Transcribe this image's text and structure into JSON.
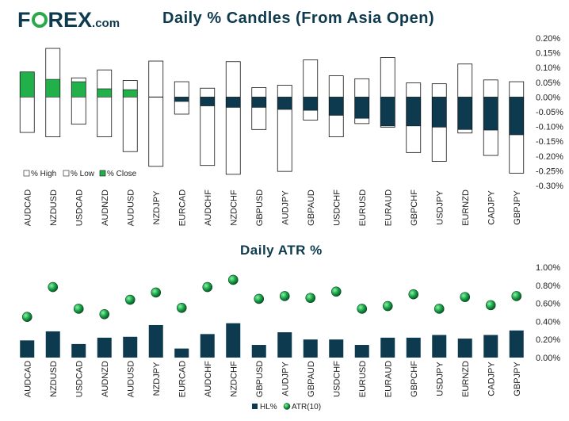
{
  "brand": {
    "name_part1": "F",
    "name_part2": "REX",
    "domain": ".com",
    "o_icon": "forex-o-ring-icon",
    "colors": {
      "navy": "#0e3a4e",
      "green": "#2aa84a"
    }
  },
  "chart_data": [
    {
      "type": "bar",
      "title": "Daily % Candles (From Asia Open)",
      "categories": [
        "AUDCAD",
        "NZDUSD",
        "USDCAD",
        "AUDNZD",
        "AUDUSD",
        "NZDJPY",
        "EURCAD",
        "AUDCHF",
        "NZDCHF",
        "GBPUSD",
        "AUDJPY",
        "GBPAUD",
        "USDCHF",
        "EURUSD",
        "EURAUD",
        "GBPCHF",
        "USDJPY",
        "EURNZD",
        "CADJPY",
        "GBPJPY"
      ],
      "series": [
        {
          "name": "% High",
          "values": [
            0.085,
            0.165,
            0.065,
            0.092,
            0.056,
            0.122,
            0.052,
            0.03,
            0.12,
            0.032,
            0.04,
            0.126,
            0.072,
            0.062,
            0.134,
            0.048,
            0.045,
            0.112,
            0.058,
            0.052
          ]
        },
        {
          "name": "% Low",
          "values": [
            -0.12,
            -0.135,
            -0.092,
            -0.135,
            -0.185,
            -0.235,
            -0.058,
            -0.232,
            -0.262,
            -0.11,
            -0.252,
            -0.078,
            -0.135,
            -0.09,
            -0.102,
            -0.188,
            -0.218,
            -0.122,
            -0.198,
            -0.258
          ]
        },
        {
          "name": "% Close",
          "values": [
            0.085,
            0.06,
            0.052,
            0.028,
            0.025,
            0.0,
            -0.015,
            -0.03,
            -0.035,
            -0.035,
            -0.042,
            -0.045,
            -0.062,
            -0.072,
            -0.098,
            -0.098,
            -0.102,
            -0.11,
            -0.112,
            -0.128
          ]
        }
      ],
      "ylim": [
        -0.3,
        0.2
      ],
      "yticks": [
        "0.20%",
        "0.15%",
        "0.10%",
        "0.05%",
        "0.00%",
        "-0.05%",
        "-0.10%",
        "-0.15%",
        "-0.20%",
        "-0.25%",
        "-0.30%"
      ],
      "ytick_values": [
        0.2,
        0.15,
        0.1,
        0.05,
        0.0,
        -0.05,
        -0.1,
        -0.15,
        -0.2,
        -0.25,
        -0.3
      ],
      "legend": [
        "% High",
        "% Low",
        "% Close"
      ],
      "legend_position": "bottom-left",
      "colors": {
        "positive_close": "#22b04b",
        "negative_close": "#0d3a4e",
        "range": "#ffffff",
        "outline": "#111111"
      }
    },
    {
      "type": "bar",
      "title": "Daily ATR %",
      "categories": [
        "AUDCAD",
        "NZDUSD",
        "USDCAD",
        "AUDNZD",
        "AUDUSD",
        "NZDJPY",
        "EURCAD",
        "AUDCHF",
        "NZDCHF",
        "GBPUSD",
        "AUDJPY",
        "GBPAUD",
        "USDCHF",
        "EURUSD",
        "EURAUD",
        "GBPCHF",
        "USDJPY",
        "EURNZD",
        "CADJPY",
        "GBPJPY"
      ],
      "series": [
        {
          "name": "HL%",
          "type": "bar",
          "values": [
            0.19,
            0.29,
            0.15,
            0.22,
            0.23,
            0.36,
            0.1,
            0.26,
            0.38,
            0.14,
            0.28,
            0.2,
            0.2,
            0.14,
            0.22,
            0.22,
            0.25,
            0.21,
            0.25,
            0.3
          ]
        },
        {
          "name": "ATR(10)",
          "type": "scatter",
          "values": [
            0.45,
            0.78,
            0.54,
            0.48,
            0.64,
            0.72,
            0.55,
            0.78,
            0.86,
            0.65,
            0.68,
            0.66,
            0.73,
            0.54,
            0.57,
            0.7,
            0.54,
            0.67,
            0.58,
            0.68
          ]
        }
      ],
      "ylim": [
        0.0,
        1.0
      ],
      "yticks": [
        "1.00%",
        "0.80%",
        "0.60%",
        "0.40%",
        "0.20%",
        "0.00%"
      ],
      "ytick_values": [
        1.0,
        0.8,
        0.6,
        0.4,
        0.2,
        0.0
      ],
      "legend": [
        "HL%",
        "ATR(10)"
      ],
      "legend_position": "bottom-center",
      "colors": {
        "bar": "#0d3a4e",
        "marker": "#1aa84a"
      }
    }
  ]
}
